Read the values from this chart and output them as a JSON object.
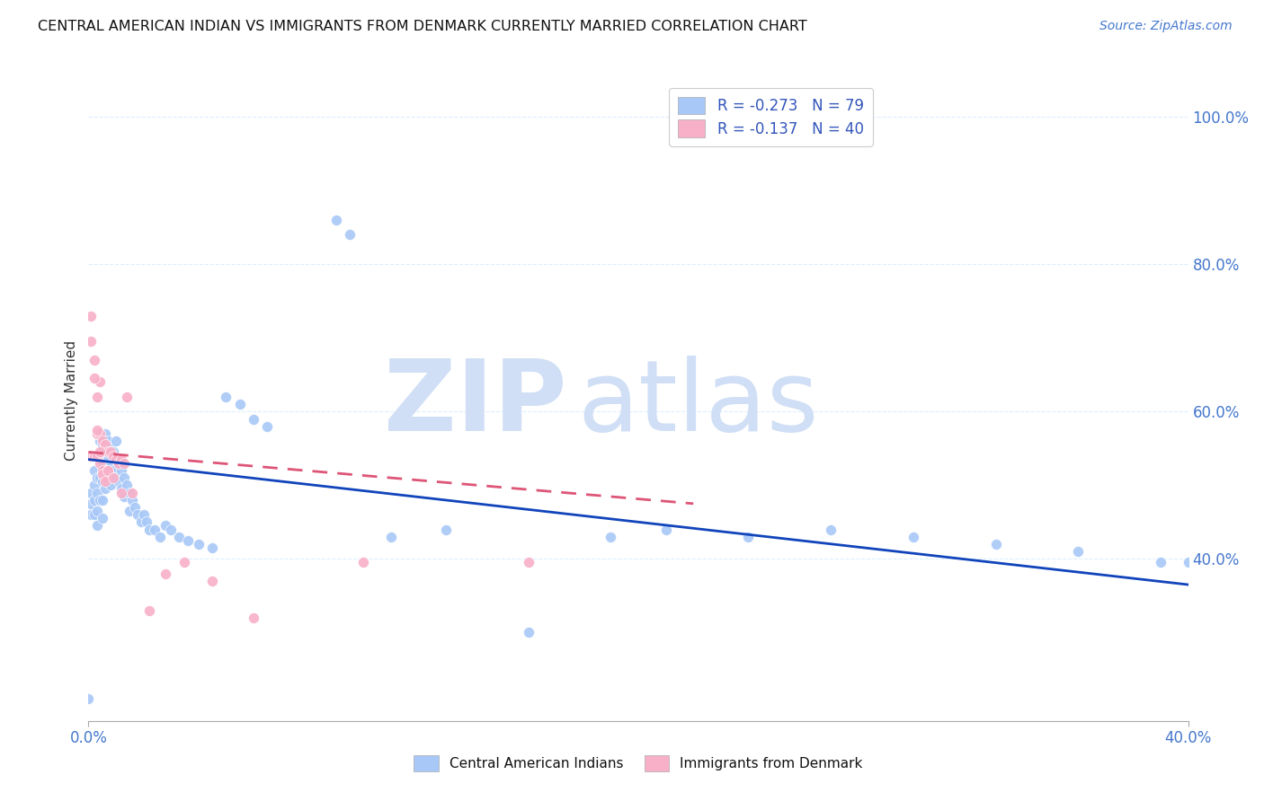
{
  "title": "CENTRAL AMERICAN INDIAN VS IMMIGRANTS FROM DENMARK CURRENTLY MARRIED CORRELATION CHART",
  "source": "Source: ZipAtlas.com",
  "ylabel": "Currently Married",
  "ylabel_right_ticks": [
    "100.0%",
    "80.0%",
    "60.0%",
    "40.0%"
  ],
  "ylabel_right_vals": [
    1.0,
    0.8,
    0.6,
    0.4
  ],
  "legend1_label": "R = -0.273   N = 79",
  "legend2_label": "R = -0.137   N = 40",
  "blue_color": "#A8C8F8",
  "pink_color": "#F8B0C8",
  "blue_line_color": "#1144BB",
  "pink_line_color": "#DD5577",
  "watermark": "ZIPatlas",
  "watermark_color": "#D0DFF5",
  "blue_line_x": [
    0.0,
    0.4
  ],
  "blue_line_y": [
    0.535,
    0.365
  ],
  "pink_line_x": [
    0.0,
    0.22
  ],
  "pink_line_y": [
    0.545,
    0.475
  ],
  "xlim": [
    0.0,
    0.4
  ],
  "ylim": [
    0.18,
    1.05
  ],
  "grid_color": "#DDEEFF",
  "background_color": "#FFFFFF",
  "blue_scatter_x": [
    0.001,
    0.001,
    0.001,
    0.002,
    0.002,
    0.002,
    0.002,
    0.003,
    0.003,
    0.003,
    0.003,
    0.003,
    0.004,
    0.004,
    0.004,
    0.004,
    0.005,
    0.005,
    0.005,
    0.005,
    0.005,
    0.006,
    0.006,
    0.006,
    0.006,
    0.007,
    0.007,
    0.007,
    0.008,
    0.008,
    0.008,
    0.009,
    0.009,
    0.01,
    0.01,
    0.01,
    0.011,
    0.011,
    0.012,
    0.012,
    0.013,
    0.013,
    0.014,
    0.015,
    0.015,
    0.016,
    0.017,
    0.018,
    0.019,
    0.02,
    0.021,
    0.022,
    0.024,
    0.026,
    0.028,
    0.03,
    0.033,
    0.036,
    0.04,
    0.045,
    0.05,
    0.055,
    0.06,
    0.065,
    0.09,
    0.095,
    0.11,
    0.13,
    0.16,
    0.19,
    0.21,
    0.24,
    0.27,
    0.3,
    0.33,
    0.36,
    0.39,
    0.4,
    0.0
  ],
  "blue_scatter_y": [
    0.49,
    0.475,
    0.46,
    0.52,
    0.5,
    0.48,
    0.46,
    0.54,
    0.51,
    0.49,
    0.465,
    0.445,
    0.56,
    0.535,
    0.51,
    0.48,
    0.555,
    0.53,
    0.505,
    0.48,
    0.455,
    0.57,
    0.545,
    0.52,
    0.495,
    0.56,
    0.535,
    0.51,
    0.55,
    0.525,
    0.5,
    0.545,
    0.52,
    0.56,
    0.535,
    0.51,
    0.53,
    0.505,
    0.52,
    0.495,
    0.51,
    0.485,
    0.5,
    0.49,
    0.465,
    0.48,
    0.47,
    0.46,
    0.45,
    0.46,
    0.45,
    0.44,
    0.44,
    0.43,
    0.445,
    0.44,
    0.43,
    0.425,
    0.42,
    0.415,
    0.62,
    0.61,
    0.59,
    0.58,
    0.86,
    0.84,
    0.43,
    0.44,
    0.3,
    0.43,
    0.44,
    0.43,
    0.44,
    0.43,
    0.42,
    0.41,
    0.395,
    0.395,
    0.21
  ],
  "pink_scatter_x": [
    0.001,
    0.001,
    0.002,
    0.002,
    0.003,
    0.003,
    0.003,
    0.004,
    0.004,
    0.004,
    0.005,
    0.005,
    0.006,
    0.006,
    0.007,
    0.007,
    0.008,
    0.009,
    0.01,
    0.011,
    0.012,
    0.013,
    0.014,
    0.001,
    0.002,
    0.003,
    0.004,
    0.005,
    0.006,
    0.007,
    0.009,
    0.012,
    0.016,
    0.022,
    0.028,
    0.035,
    0.045,
    0.06,
    0.1,
    0.16
  ],
  "pink_scatter_y": [
    0.73,
    0.54,
    0.67,
    0.54,
    0.62,
    0.57,
    0.54,
    0.64,
    0.57,
    0.53,
    0.56,
    0.52,
    0.555,
    0.51,
    0.545,
    0.52,
    0.545,
    0.54,
    0.535,
    0.53,
    0.535,
    0.53,
    0.62,
    0.695,
    0.645,
    0.575,
    0.545,
    0.515,
    0.505,
    0.52,
    0.51,
    0.49,
    0.49,
    0.33,
    0.38,
    0.395,
    0.37,
    0.32,
    0.395,
    0.395
  ]
}
